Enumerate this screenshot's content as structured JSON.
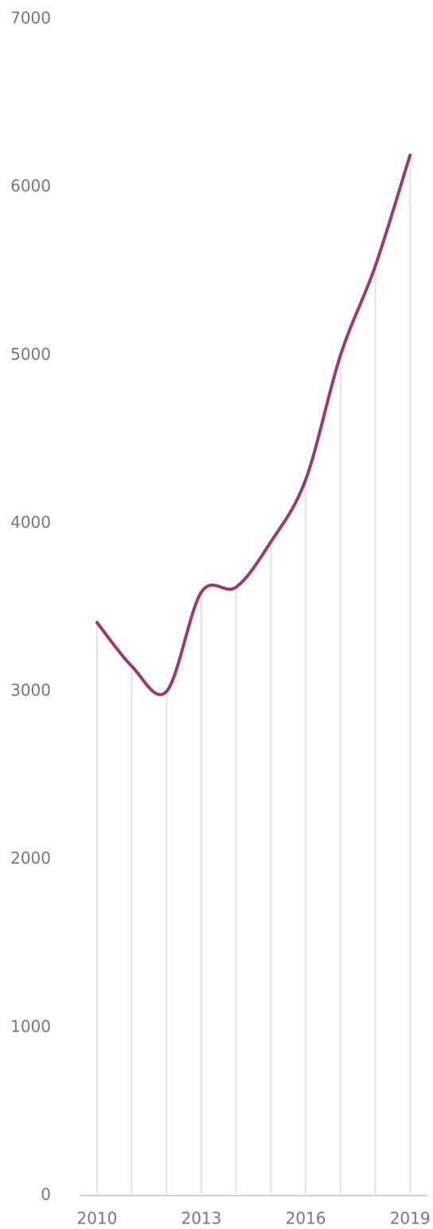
{
  "chart_data": {
    "type": "line",
    "x": [
      2010,
      2011,
      2012,
      2013,
      2014,
      2015,
      2016,
      2017,
      2018,
      2019
    ],
    "series": [
      {
        "color": "#9b3a6e",
        "values": [
          3410,
          3150,
          3000,
          3590,
          3620,
          3890,
          4260,
          5000,
          5530,
          6190
        ]
      }
    ],
    "xlim": [
      2009.5,
      2019.5
    ],
    "xticks": [
      2010,
      2013,
      2016,
      2019
    ],
    "ylim": [
      0,
      7000
    ],
    "yticks": [
      0,
      1000,
      2000,
      3000,
      4000,
      5000,
      6000,
      7000
    ],
    "drop_lines": true
  }
}
